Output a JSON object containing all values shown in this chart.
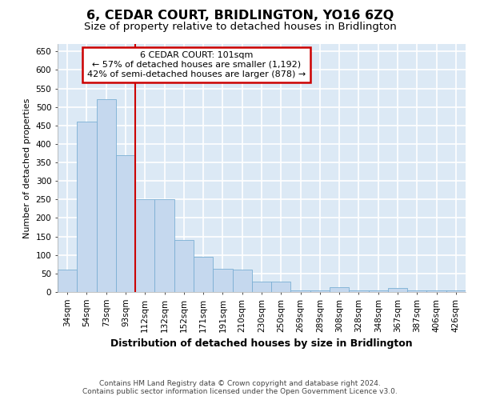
{
  "title": "6, CEDAR COURT, BRIDLINGTON, YO16 6ZQ",
  "subtitle": "Size of property relative to detached houses in Bridlington",
  "xlabel": "Distribution of detached houses by size in Bridlington",
  "ylabel": "Number of detached properties",
  "categories": [
    "34sqm",
    "54sqm",
    "73sqm",
    "93sqm",
    "112sqm",
    "132sqm",
    "152sqm",
    "171sqm",
    "191sqm",
    "210sqm",
    "230sqm",
    "250sqm",
    "269sqm",
    "289sqm",
    "308sqm",
    "328sqm",
    "348sqm",
    "367sqm",
    "387sqm",
    "406sqm",
    "426sqm"
  ],
  "values": [
    60,
    460,
    520,
    370,
    250,
    250,
    140,
    95,
    62,
    60,
    28,
    28,
    5,
    5,
    13,
    5,
    5,
    10,
    5,
    5,
    5
  ],
  "bar_color": "#c5d8ee",
  "bar_edge_color": "#7bafd4",
  "background_color": "#dce9f5",
  "grid_color": "#ffffff",
  "red_line_x": 3.5,
  "annotation_title": "6 CEDAR COURT: 101sqm",
  "annotation_line1": "← 57% of detached houses are smaller (1,192)",
  "annotation_line2": "42% of semi-detached houses are larger (878) →",
  "annotation_box_color": "#ffffff",
  "annotation_box_edge": "#cc0000",
  "ylim": [
    0,
    670
  ],
  "yticks": [
    0,
    50,
    100,
    150,
    200,
    250,
    300,
    350,
    400,
    450,
    500,
    550,
    600,
    650
  ],
  "footnote1": "Contains HM Land Registry data © Crown copyright and database right 2024.",
  "footnote2": "Contains public sector information licensed under the Open Government Licence v3.0.",
  "title_fontsize": 11.5,
  "subtitle_fontsize": 9.5,
  "xlabel_fontsize": 9,
  "ylabel_fontsize": 8,
  "tick_fontsize": 7.5,
  "annotation_fontsize": 8,
  "fig_bg": "#ffffff"
}
